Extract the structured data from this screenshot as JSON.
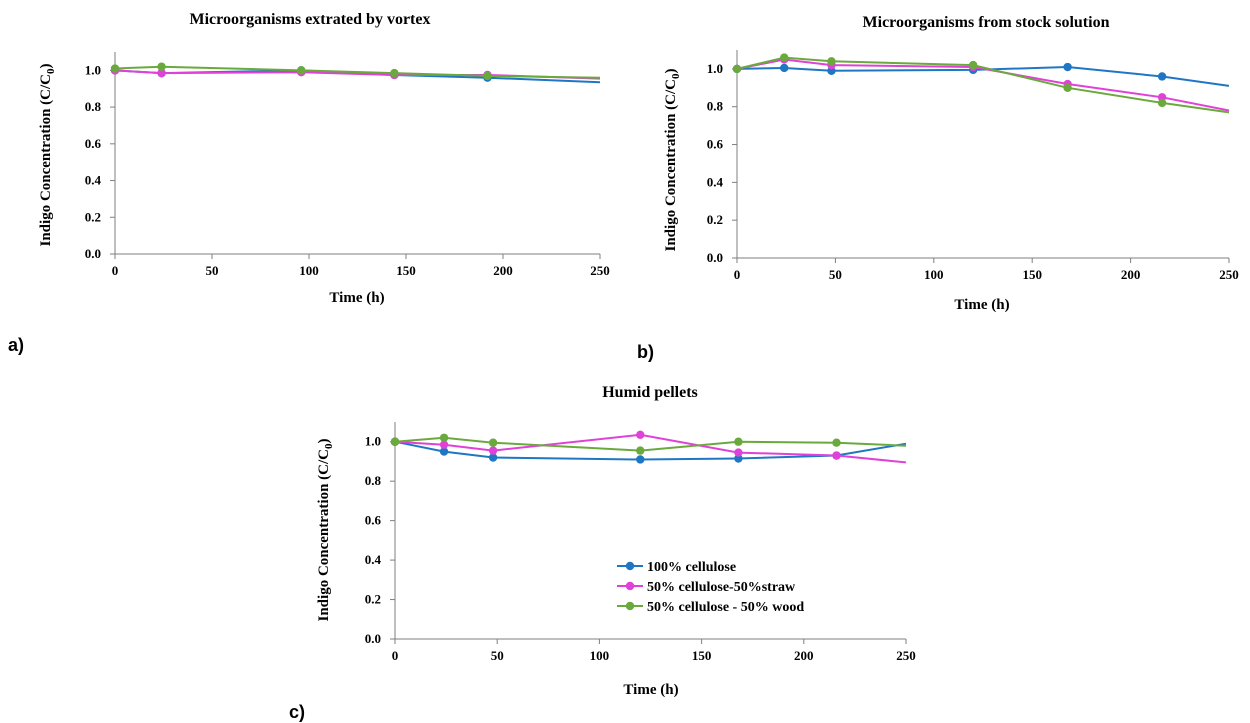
{
  "colors": {
    "series_1": "#1f77c4",
    "series_2": "#e041d8",
    "series_3": "#6aaa3c",
    "axis": "#7f7f7f"
  },
  "legend": {
    "panel": 2,
    "entries": [
      "100% cellulose",
      "50% cellulose-50%straw",
      "50% cellulose - 50% wood"
    ]
  },
  "chart_data": [
    {
      "type": "line",
      "panel_label": "a)",
      "title": "Microorganisms extrated by vortex",
      "xlabel": "Time (h)",
      "ylabel": "Indigo Concentration  (C/C",
      "ylabel_sub": "0",
      "ylabel_end": ")",
      "xlim": [
        0,
        250
      ],
      "ylim": [
        0,
        1.1
      ],
      "x_ticks": [
        0,
        50,
        100,
        150,
        200,
        250
      ],
      "x_tick_labels": [
        "0",
        "50",
        "100",
        "150",
        "200",
        "250"
      ],
      "y_ticks": [
        0,
        0.2,
        0.4,
        0.6,
        0.8,
        1.0
      ],
      "y_tick_labels": [
        "0.0",
        "0.2",
        "0.4",
        "0.6",
        "0.8",
        "1.0"
      ],
      "series": [
        {
          "x": [
            0,
            24,
            96,
            144,
            192,
            250
          ],
          "y": [
            1.0,
            0.985,
            1.0,
            0.975,
            0.96,
            0.935
          ],
          "markers": [
            true,
            true,
            true,
            true,
            true,
            false
          ]
        },
        {
          "x": [
            0,
            24,
            96,
            144,
            192,
            250
          ],
          "y": [
            1.0,
            0.985,
            0.99,
            0.975,
            0.975,
            0.955
          ],
          "markers": [
            true,
            true,
            true,
            true,
            true,
            false
          ]
        },
        {
          "x": [
            0,
            24,
            96,
            144,
            192,
            250
          ],
          "y": [
            1.01,
            1.02,
            1.0,
            0.985,
            0.97,
            0.96
          ],
          "markers": [
            true,
            true,
            true,
            true,
            true,
            false
          ]
        }
      ]
    },
    {
      "type": "line",
      "panel_label": "b)",
      "title": "Microorganisms from stock solution",
      "xlabel": "Time (h)",
      "ylabel": "Indigo Concentration  (C/C",
      "ylabel_sub": "0",
      "ylabel_end": ")",
      "xlim": [
        0,
        250
      ],
      "ylim": [
        0,
        1.1
      ],
      "x_ticks": [
        0,
        50,
        100,
        150,
        200,
        250
      ],
      "x_tick_labels": [
        "0",
        "50",
        "100",
        "150",
        "200",
        "250"
      ],
      "y_ticks": [
        0,
        0.2,
        0.4,
        0.6,
        0.8,
        1.0
      ],
      "y_tick_labels": [
        "0.0",
        "0.2",
        "0.4",
        "0.6",
        "0.8",
        "1.0"
      ],
      "series": [
        {
          "x": [
            0,
            24,
            48,
            120,
            168,
            216,
            250
          ],
          "y": [
            1.0,
            1.005,
            0.99,
            0.995,
            1.01,
            0.96,
            0.91
          ],
          "markers": [
            true,
            true,
            true,
            true,
            true,
            true,
            false
          ]
        },
        {
          "x": [
            0,
            24,
            48,
            120,
            168,
            216,
            250
          ],
          "y": [
            1.0,
            1.05,
            1.02,
            1.01,
            0.92,
            0.85,
            0.78
          ],
          "markers": [
            true,
            true,
            true,
            true,
            true,
            true,
            false
          ]
        },
        {
          "x": [
            0,
            24,
            48,
            120,
            168,
            216,
            250
          ],
          "y": [
            1.0,
            1.06,
            1.04,
            1.02,
            0.9,
            0.82,
            0.77
          ],
          "markers": [
            true,
            true,
            true,
            true,
            true,
            true,
            false
          ]
        }
      ]
    },
    {
      "type": "line",
      "panel_label": "c)",
      "title": "Humid pellets",
      "xlabel": "Time (h)",
      "ylabel": "Indigo Concentration  (C/C",
      "ylabel_sub": "0",
      "ylabel_end": ")",
      "xlim": [
        0,
        250
      ],
      "ylim": [
        0,
        1.1
      ],
      "x_ticks": [
        0,
        50,
        100,
        150,
        200,
        250
      ],
      "x_tick_labels": [
        "0",
        "50",
        "100",
        "150",
        "200",
        "250"
      ],
      "y_ticks": [
        0,
        0.2,
        0.4,
        0.6,
        0.8,
        1.0
      ],
      "y_tick_labels": [
        "0.0",
        "0.2",
        "0.4",
        "0.6",
        "0.8",
        "1.0"
      ],
      "series": [
        {
          "x": [
            0,
            24,
            48,
            120,
            168,
            216,
            250
          ],
          "y": [
            1.0,
            0.95,
            0.92,
            0.91,
            0.915,
            0.93,
            0.99
          ],
          "markers": [
            true,
            true,
            true,
            true,
            true,
            true,
            false
          ]
        },
        {
          "x": [
            0,
            24,
            48,
            120,
            168,
            216,
            250
          ],
          "y": [
            1.0,
            0.985,
            0.955,
            1.035,
            0.945,
            0.93,
            0.895
          ],
          "markers": [
            true,
            true,
            true,
            true,
            true,
            true,
            false
          ]
        },
        {
          "x": [
            0,
            24,
            48,
            120,
            168,
            216,
            250
          ],
          "y": [
            1.0,
            1.02,
            0.995,
            0.955,
            1.0,
            0.995,
            0.98
          ],
          "markers": [
            true,
            true,
            true,
            true,
            true,
            true,
            false
          ]
        }
      ]
    }
  ]
}
